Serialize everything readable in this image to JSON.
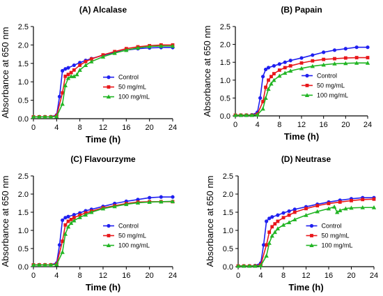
{
  "colors": {
    "Control": "#1f1ff0",
    "50 mg/mL": "#e8161a",
    "100 mg/mL": "#22b524"
  },
  "chart_data": [
    {
      "type": "line",
      "title": "(A)  Alcalase",
      "xlabel": "Time (h)",
      "ylabel": "Absorbance at 650 nm",
      "xlim": [
        0,
        24
      ],
      "ylim": [
        0,
        2.5
      ],
      "xticks": [
        "0",
        "4",
        "8",
        "12",
        "16",
        "20",
        "24"
      ],
      "yticks": [
        "0.0",
        "0.5",
        "1.0",
        "1.5",
        "2.0",
        "2.5"
      ],
      "grid": false,
      "legend_position": "lower-right",
      "series": [
        {
          "name": "Control",
          "marker": "circle",
          "x": [
            0,
            1,
            2,
            3,
            4,
            4.5,
            5,
            5.5,
            6,
            7,
            8,
            9,
            10,
            12,
            14,
            16,
            18,
            20,
            22,
            24
          ],
          "y": [
            0.05,
            0.05,
            0.05,
            0.05,
            0.1,
            0.6,
            1.3,
            1.35,
            1.38,
            1.45,
            1.52,
            1.58,
            1.63,
            1.72,
            1.8,
            1.86,
            1.9,
            1.92,
            1.93,
            1.93
          ]
        },
        {
          "name": "50 mg/mL",
          "marker": "square",
          "x": [
            0,
            1,
            2,
            3,
            4,
            5,
            5.5,
            6,
            6.5,
            7,
            8,
            9,
            10,
            12,
            14,
            16,
            18,
            20,
            22,
            24
          ],
          "y": [
            0.05,
            0.05,
            0.05,
            0.05,
            0.08,
            0.7,
            1.15,
            1.2,
            1.25,
            1.32,
            1.45,
            1.55,
            1.62,
            1.73,
            1.82,
            1.9,
            1.95,
            1.98,
            2.0,
            2.0
          ]
        },
        {
          "name": "100 mg/mL",
          "marker": "triangle",
          "x": [
            0,
            1,
            2,
            3,
            4,
            5,
            5.5,
            6,
            6.5,
            7,
            7.5,
            8,
            9,
            10,
            12,
            14,
            16,
            18,
            20,
            22,
            24
          ],
          "y": [
            0.05,
            0.05,
            0.05,
            0.05,
            0.06,
            0.4,
            0.9,
            1.1,
            1.15,
            1.15,
            1.2,
            1.32,
            1.45,
            1.55,
            1.68,
            1.78,
            1.86,
            1.92,
            1.96,
            1.97,
            1.97
          ]
        }
      ]
    },
    {
      "type": "line",
      "title": "(B)  Papain",
      "xlabel": "Time (h)",
      "ylabel": "Absorbance at 650 nm",
      "xlim": [
        0,
        24
      ],
      "ylim": [
        0,
        2.5
      ],
      "xticks": [
        "0",
        "4",
        "8",
        "12",
        "16",
        "20",
        "24"
      ],
      "yticks": [
        "0.0",
        "0.5",
        "1.0",
        "1.5",
        "2.0",
        "2.5"
      ],
      "grid": false,
      "legend_position": "lower-right",
      "series": [
        {
          "name": "Control",
          "marker": "circle",
          "x": [
            0,
            1,
            2,
            3,
            4,
            4.5,
            5,
            5.5,
            6,
            7,
            8,
            9,
            10,
            12,
            14,
            16,
            18,
            20,
            22,
            24
          ],
          "y": [
            0.02,
            0.02,
            0.02,
            0.03,
            0.1,
            0.5,
            1.1,
            1.3,
            1.35,
            1.4,
            1.45,
            1.5,
            1.55,
            1.62,
            1.7,
            1.78,
            1.84,
            1.88,
            1.92,
            1.92
          ]
        },
        {
          "name": "50 mg/mL",
          "marker": "square",
          "x": [
            0,
            1,
            2,
            3,
            4,
            5,
            5.5,
            6,
            6.5,
            7,
            8,
            9,
            10,
            12,
            14,
            16,
            18,
            20,
            22,
            24
          ],
          "y": [
            0.02,
            0.02,
            0.02,
            0.02,
            0.05,
            0.4,
            0.8,
            1.0,
            1.1,
            1.18,
            1.28,
            1.35,
            1.4,
            1.48,
            1.54,
            1.58,
            1.6,
            1.62,
            1.63,
            1.63
          ]
        },
        {
          "name": "100 mg/mL",
          "marker": "triangle",
          "x": [
            0,
            1,
            2,
            3,
            4,
            5,
            5.5,
            6,
            6.5,
            7,
            8,
            9,
            10,
            12,
            14,
            16,
            18,
            20,
            22,
            24
          ],
          "y": [
            0.02,
            0.02,
            0.02,
            0.02,
            0.03,
            0.2,
            0.5,
            0.75,
            0.9,
            1.0,
            1.12,
            1.2,
            1.26,
            1.33,
            1.39,
            1.43,
            1.46,
            1.47,
            1.48,
            1.48
          ]
        }
      ]
    },
    {
      "type": "line",
      "title": "(C)  Flavourzyme",
      "xlabel": "Time (h)",
      "ylabel": "Absorbance at 650 nm",
      "xlim": [
        0,
        24
      ],
      "ylim": [
        0,
        2.5
      ],
      "xticks": [
        "0",
        "4",
        "8",
        "12",
        "16",
        "20",
        "24"
      ],
      "yticks": [
        "0.0",
        "0.5",
        "1.0",
        "1.5",
        "2.0",
        "2.5"
      ],
      "grid": false,
      "legend_position": "lower-right",
      "series": [
        {
          "name": "Control",
          "marker": "circle",
          "x": [
            0,
            1,
            2,
            3,
            4,
            4.5,
            5,
            5.5,
            6,
            7,
            8,
            9,
            10,
            12,
            14,
            16,
            18,
            20,
            22,
            24
          ],
          "y": [
            0.05,
            0.05,
            0.05,
            0.05,
            0.1,
            0.6,
            1.28,
            1.35,
            1.38,
            1.43,
            1.48,
            1.54,
            1.58,
            1.66,
            1.74,
            1.8,
            1.85,
            1.9,
            1.92,
            1.92
          ]
        },
        {
          "name": "50 mg/mL",
          "marker": "square",
          "x": [
            0,
            1,
            2,
            3,
            4,
            5,
            5.5,
            6,
            6.5,
            7,
            8,
            9,
            10,
            12,
            14,
            16,
            18,
            20,
            22,
            24
          ],
          "y": [
            0.05,
            0.05,
            0.05,
            0.05,
            0.07,
            0.7,
            1.15,
            1.25,
            1.3,
            1.35,
            1.42,
            1.48,
            1.53,
            1.62,
            1.68,
            1.74,
            1.78,
            1.79,
            1.79,
            1.79
          ]
        },
        {
          "name": "100 mg/mL",
          "marker": "triangle",
          "x": [
            0,
            1,
            2,
            3,
            4,
            5,
            5.5,
            6,
            6.5,
            7,
            8,
            9,
            10,
            12,
            14,
            16,
            18,
            20,
            22,
            24
          ],
          "y": [
            0.05,
            0.05,
            0.05,
            0.05,
            0.06,
            0.4,
            0.9,
            1.1,
            1.2,
            1.27,
            1.36,
            1.43,
            1.5,
            1.6,
            1.66,
            1.72,
            1.76,
            1.78,
            1.79,
            1.8
          ]
        }
      ]
    },
    {
      "type": "line",
      "title": "(D)  Neutrase",
      "xlabel": "Time (h)",
      "ylabel": "Absorbance at 650 nm",
      "xlim": [
        0,
        24
      ],
      "ylim": [
        0,
        2.5
      ],
      "xticks": [
        "0",
        "4",
        "8",
        "12",
        "16",
        "20",
        "24"
      ],
      "yticks": [
        "0.0",
        "0.5",
        "1.0",
        "1.5",
        "2.0",
        "2.5"
      ],
      "grid": false,
      "legend_position": "lower-right",
      "series": [
        {
          "name": "Control",
          "marker": "circle",
          "x": [
            0,
            1,
            2,
            3,
            4,
            4.5,
            5,
            5.5,
            6,
            7,
            8,
            9,
            10,
            12,
            14,
            16,
            18,
            20,
            22,
            24
          ],
          "y": [
            0.02,
            0.02,
            0.02,
            0.03,
            0.1,
            0.6,
            1.25,
            1.33,
            1.37,
            1.42,
            1.48,
            1.53,
            1.58,
            1.65,
            1.72,
            1.78,
            1.83,
            1.87,
            1.9,
            1.9
          ]
        },
        {
          "name": "50 mg/mL",
          "marker": "square",
          "x": [
            0,
            1,
            2,
            3,
            4,
            5,
            5.5,
            6,
            6.5,
            7,
            8,
            9,
            10,
            12,
            14,
            16,
            18,
            20,
            22,
            24
          ],
          "y": [
            0.02,
            0.02,
            0.02,
            0.02,
            0.05,
            0.6,
            0.95,
            1.1,
            1.18,
            1.25,
            1.35,
            1.42,
            1.5,
            1.6,
            1.68,
            1.74,
            1.78,
            1.82,
            1.85,
            1.86
          ]
        },
        {
          "name": "100 mg/mL",
          "marker": "triangle",
          "x": [
            0,
            1,
            2,
            3,
            4,
            5,
            5.5,
            6,
            6.5,
            7,
            8,
            9,
            10,
            12,
            14,
            16,
            17,
            17.5,
            18,
            19,
            20,
            22,
            24
          ],
          "y": [
            0.02,
            0.02,
            0.02,
            0.02,
            0.03,
            0.3,
            0.65,
            0.85,
            0.95,
            1.05,
            1.15,
            1.22,
            1.3,
            1.42,
            1.52,
            1.6,
            1.65,
            1.5,
            1.55,
            1.6,
            1.62,
            1.63,
            1.63
          ]
        }
      ]
    }
  ]
}
